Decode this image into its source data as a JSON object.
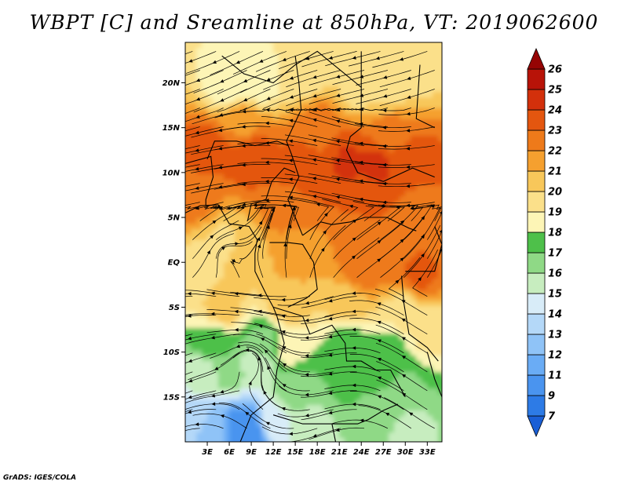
{
  "title": "WBPT [C] and Sreamline at 850hPa, VT: 2019062600",
  "credit": "GrADS: IGES/COLA",
  "chart_data": {
    "type": "heatmap",
    "title": "WBPT [C] and Sreamline at 850hPa, VT: 2019062600",
    "variable": "wet-bulb potential temperature",
    "units": "C",
    "level": "850hPa",
    "valid_time": "2019062600",
    "overlay": "streamlines",
    "x_axis": {
      "range": [
        0,
        35
      ],
      "ticks": [
        3,
        6,
        9,
        12,
        15,
        18,
        21,
        24,
        27,
        30,
        33
      ],
      "tick_labels": [
        "3E",
        "6E",
        "9E",
        "12E",
        "15E",
        "18E",
        "21E",
        "24E",
        "27E",
        "30E",
        "33E"
      ]
    },
    "y_axis": {
      "range": [
        -20,
        24.5
      ],
      "ticks": [
        20,
        15,
        10,
        5,
        0,
        -5,
        -10,
        -15
      ],
      "tick_labels": [
        "20N",
        "15N",
        "10N",
        "5N",
        "EQ",
        "5S",
        "10S",
        "15S"
      ]
    },
    "colorbar": {
      "levels": [
        "7",
        "9",
        "11",
        "12",
        "13",
        "14",
        "15",
        "16",
        "17",
        "18",
        "19",
        "20",
        "21",
        "22",
        "23",
        "24",
        "25",
        "26"
      ],
      "colors": [
        "#1a5fd6",
        "#2d7be6",
        "#4a94ef",
        "#6aacf5",
        "#8fc3f7",
        "#b4d8f8",
        "#d8ecf8",
        "#c7edbf",
        "#8fd986",
        "#4ec04a",
        "#fdf5b6",
        "#fbe08a",
        "#f8c75a",
        "#f5a02f",
        "#ee7a1a",
        "#e4560f",
        "#d3300b",
        "#b81308",
        "#960404"
      ]
    },
    "field_regions": [
      {
        "lon": 6,
        "lat": 20,
        "value": 18.2
      },
      {
        "lon": 10,
        "lat": 20,
        "value": 18.5
      },
      {
        "lon": 16,
        "lat": 21,
        "value": 19.2
      },
      {
        "lon": 24,
        "lat": 20,
        "value": 19.4
      },
      {
        "lon": 28,
        "lat": 19,
        "value": 19.8
      },
      {
        "lon": 32,
        "lat": 22,
        "value": 19.5
      },
      {
        "lon": 8,
        "lat": 15.5,
        "value": 21.8
      },
      {
        "lon": 18,
        "lat": 15,
        "value": 22.5
      },
      {
        "lon": 28,
        "lat": 14.5,
        "value": 22.6
      },
      {
        "lon": 3,
        "lat": 12.5,
        "value": 23.6
      },
      {
        "lon": 9,
        "lat": 12,
        "value": 23.8
      },
      {
        "lon": 16,
        "lat": 10.5,
        "value": 23.7
      },
      {
        "lon": 22,
        "lat": 11,
        "value": 24.1
      },
      {
        "lon": 26,
        "lat": 10.5,
        "value": 24.2
      },
      {
        "lon": 31,
        "lat": 11,
        "value": 23.8
      },
      {
        "lon": 1.5,
        "lat": 7,
        "value": 22.4
      },
      {
        "lon": 14,
        "lat": 6.5,
        "value": 22.8
      },
      {
        "lon": 25,
        "lat": 6.5,
        "value": 23.0
      },
      {
        "lon": 32,
        "lat": 6,
        "value": 22.6
      },
      {
        "lon": 5,
        "lat": 2,
        "value": 19.8
      },
      {
        "lon": 2,
        "lat": -1,
        "value": 19.5
      },
      {
        "lon": 8,
        "lat": 0.5,
        "value": 20.5
      },
      {
        "lon": 15,
        "lat": 1,
        "value": 21.6
      },
      {
        "lon": 24,
        "lat": -0.5,
        "value": 22.7
      },
      {
        "lon": 28,
        "lat": 0.5,
        "value": 23.0
      },
      {
        "lon": 32,
        "lat": -1.5,
        "value": 23.2
      },
      {
        "lon": 5,
        "lat": -5,
        "value": 20.6
      },
      {
        "lon": 14,
        "lat": -4.5,
        "value": 20.8
      },
      {
        "lon": 22,
        "lat": -4.5,
        "value": 20.7
      },
      {
        "lon": 30,
        "lat": -5.5,
        "value": 19.5
      },
      {
        "lon": 33,
        "lat": -7.5,
        "value": 19.3
      },
      {
        "lon": 4,
        "lat": -8.5,
        "value": 17.8
      },
      {
        "lon": 11,
        "lat": -9.5,
        "value": 16.4
      },
      {
        "lon": 14,
        "lat": -9.5,
        "value": 18.6
      },
      {
        "lon": 22,
        "lat": -9,
        "value": 17.4
      },
      {
        "lon": 28,
        "lat": -10,
        "value": 17.5
      },
      {
        "lon": 2,
        "lat": -13,
        "value": 15.2
      },
      {
        "lon": 6,
        "lat": -12.5,
        "value": 16.4
      },
      {
        "lon": 10,
        "lat": -11.5,
        "value": 15.4
      },
      {
        "lon": 15,
        "lat": -14,
        "value": 16.8
      },
      {
        "lon": 22,
        "lat": -14,
        "value": 17.1
      },
      {
        "lon": 30,
        "lat": -14,
        "value": 16.9
      },
      {
        "lon": 1.5,
        "lat": -17.5,
        "value": 13.2
      },
      {
        "lon": 4,
        "lat": -18.5,
        "value": 12.4
      },
      {
        "lon": 7.5,
        "lat": -18,
        "value": 10.5
      },
      {
        "lon": 9,
        "lat": -19.5,
        "value": 9.0
      },
      {
        "lon": 12,
        "lat": -18,
        "value": 14.8
      },
      {
        "lon": 17,
        "lat": -18.5,
        "value": 15.4
      },
      {
        "lon": 24,
        "lat": -19,
        "value": 16.0
      },
      {
        "lon": 31,
        "lat": -18.5,
        "value": 15.8
      }
    ],
    "grid": false,
    "legend": "right colorbar"
  }
}
